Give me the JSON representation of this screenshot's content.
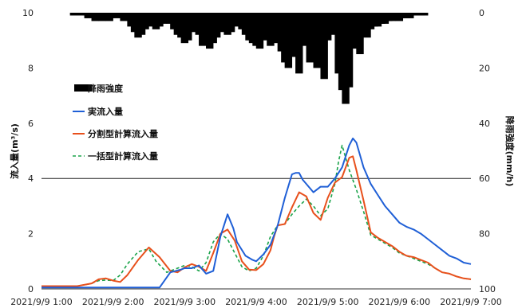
{
  "chart_data": {
    "type": "line",
    "legend": [
      {
        "label": "降雨強度",
        "kind": "bar",
        "color": "#000000"
      },
      {
        "label": "実流入量",
        "kind": "line",
        "color": "#1f5fd6"
      },
      {
        "label": "分割型計算流入量",
        "kind": "line",
        "color": "#e8501c"
      },
      {
        "label": "一括型計算流入量",
        "kind": "dashed",
        "color": "#1aa34a"
      }
    ],
    "legend_placement": "left-middle",
    "ylabel_left": "流入量(m³/s)",
    "ylabel_right": "降雨強度(mm/h)",
    "ylim_left": [
      0,
      10
    ],
    "yticks_left": [
      "0",
      "2",
      "4",
      "6",
      "8",
      "10"
    ],
    "ylim_right_inverted": [
      0,
      100
    ],
    "yticks_right": [
      "0",
      "20",
      "40",
      "60",
      "80",
      "100"
    ],
    "xlim_hours": [
      1,
      7
    ],
    "xticks": [
      "2021/9/9 1:00",
      "2021/9/9 2:00",
      "2021/9/9 3:00",
      "2021/9/9 4:00",
      "2021/9/9 5:00",
      "2021/9/9 6:00",
      "2021/9/9 7:00"
    ],
    "gridlines_left": [
      4
    ],
    "series": [
      {
        "key": "actual",
        "color": "#1f5fd6",
        "x": [
          1.0,
          1.5,
          2.0,
          2.3,
          2.5,
          2.65,
          2.8,
          2.95,
          3.0,
          3.1,
          3.2,
          3.3,
          3.4,
          3.5,
          3.6,
          3.68,
          3.73,
          3.85,
          3.95,
          4.0,
          4.1,
          4.2,
          4.3,
          4.4,
          4.5,
          4.55,
          4.6,
          4.65,
          4.7,
          4.8,
          4.9,
          5.0,
          5.1,
          5.2,
          5.3,
          5.35,
          5.4,
          5.5,
          5.6,
          5.7,
          5.8,
          5.9,
          6.0,
          6.1,
          6.2,
          6.3,
          6.4,
          6.5,
          6.6,
          6.7,
          6.8,
          6.9,
          7.0
        ],
        "y": [
          0.05,
          0.05,
          0.05,
          0.05,
          0.05,
          0.05,
          0.6,
          0.7,
          0.75,
          0.75,
          0.85,
          0.55,
          0.65,
          1.9,
          2.7,
          2.2,
          1.7,
          1.2,
          1.05,
          1.0,
          1.25,
          1.6,
          2.3,
          3.3,
          4.15,
          4.2,
          4.2,
          3.95,
          3.8,
          3.5,
          3.7,
          3.7,
          4.0,
          4.4,
          5.2,
          5.45,
          5.3,
          4.4,
          3.8,
          3.4,
          3.0,
          2.7,
          2.4,
          2.25,
          2.15,
          2.0,
          1.8,
          1.6,
          1.4,
          1.2,
          1.1,
          0.95,
          0.9
        ]
      },
      {
        "key": "split",
        "color": "#e8501c",
        "x": [
          1.0,
          1.5,
          1.7,
          1.8,
          1.9,
          2.0,
          2.1,
          2.2,
          2.35,
          2.5,
          2.65,
          2.8,
          2.9,
          3.0,
          3.1,
          3.2,
          3.3,
          3.4,
          3.5,
          3.6,
          3.7,
          3.8,
          3.9,
          4.0,
          4.1,
          4.2,
          4.25,
          4.3,
          4.4,
          4.5,
          4.6,
          4.7,
          4.8,
          4.9,
          5.0,
          5.1,
          5.2,
          5.3,
          5.35,
          5.4,
          5.5,
          5.6,
          5.7,
          5.8,
          5.9,
          6.0,
          6.1,
          6.2,
          6.3,
          6.4,
          6.5,
          6.6,
          6.7,
          6.8,
          6.9,
          7.0
        ],
        "y": [
          0.1,
          0.1,
          0.2,
          0.35,
          0.38,
          0.3,
          0.25,
          0.5,
          1.05,
          1.5,
          1.15,
          0.65,
          0.6,
          0.78,
          0.9,
          0.8,
          0.65,
          1.3,
          2.0,
          2.15,
          1.75,
          1.0,
          0.7,
          0.68,
          0.9,
          1.4,
          1.9,
          2.3,
          2.35,
          2.95,
          3.5,
          3.35,
          2.75,
          2.5,
          3.3,
          3.85,
          4.05,
          4.75,
          4.8,
          4.3,
          3.2,
          2.05,
          1.85,
          1.7,
          1.55,
          1.35,
          1.2,
          1.15,
          1.05,
          0.95,
          0.75,
          0.6,
          0.55,
          0.45,
          0.38,
          0.35
        ]
      },
      {
        "key": "bulk",
        "color": "#1aa34a",
        "x": [
          1.0,
          1.5,
          1.7,
          1.8,
          1.9,
          2.0,
          2.1,
          2.2,
          2.35,
          2.5,
          2.6,
          2.75,
          2.9,
          3.0,
          3.1,
          3.2,
          3.3,
          3.4,
          3.5,
          3.6,
          3.7,
          3.8,
          3.9,
          4.0,
          4.1,
          4.2,
          4.3,
          4.4,
          4.5,
          4.6,
          4.7,
          4.8,
          4.9,
          5.0,
          5.1,
          5.15,
          5.2,
          5.3,
          5.4,
          5.5,
          5.6,
          5.7,
          5.8,
          5.9,
          6.0,
          6.1,
          6.2,
          6.3,
          6.4,
          6.5,
          6.6,
          6.7,
          6.8,
          6.9,
          7.0
        ],
        "y": [
          0.1,
          0.1,
          0.2,
          0.3,
          0.32,
          0.3,
          0.5,
          0.9,
          1.35,
          1.45,
          1.0,
          0.6,
          0.75,
          0.85,
          0.8,
          0.65,
          0.95,
          1.7,
          2.0,
          1.8,
          1.3,
          0.8,
          0.65,
          0.75,
          1.2,
          1.9,
          2.3,
          2.35,
          2.7,
          3.0,
          3.25,
          3.0,
          2.65,
          2.9,
          3.8,
          4.6,
          5.2,
          4.3,
          3.6,
          2.8,
          1.95,
          1.8,
          1.65,
          1.5,
          1.3,
          1.2,
          1.1,
          1.0,
          0.9,
          0.75,
          0.6,
          0.55,
          0.45,
          0.38,
          0.35
        ]
      }
    ],
    "rain": {
      "key": "rainfall",
      "color": "#000000",
      "x": [
        1.45,
        1.55,
        1.65,
        1.75,
        1.85,
        1.95,
        2.05,
        2.15,
        2.25,
        2.3,
        2.35,
        2.4,
        2.45,
        2.5,
        2.55,
        2.6,
        2.65,
        2.7,
        2.75,
        2.8,
        2.85,
        2.9,
        2.95,
        3.0,
        3.05,
        3.1,
        3.15,
        3.2,
        3.25,
        3.3,
        3.35,
        3.4,
        3.45,
        3.5,
        3.55,
        3.6,
        3.65,
        3.7,
        3.75,
        3.8,
        3.85,
        3.9,
        3.95,
        4.0,
        4.05,
        4.1,
        4.15,
        4.2,
        4.25,
        4.3,
        4.35,
        4.4,
        4.45,
        4.5,
        4.55,
        4.6,
        4.65,
        4.7,
        4.75,
        4.8,
        4.85,
        4.9,
        4.95,
        5.0,
        5.05,
        5.1,
        5.15,
        5.2,
        5.25,
        5.3,
        5.35,
        5.4,
        5.45,
        5.5,
        5.55,
        5.6,
        5.65,
        5.7,
        5.75,
        5.8,
        5.85,
        5.9,
        5.95,
        6.0,
        6.05,
        6.1,
        6.15,
        6.2,
        6.25,
        6.3,
        6.35
      ],
      "y": [
        1,
        1,
        2,
        3,
        3,
        3,
        2,
        3,
        5,
        7,
        9,
        8,
        6,
        5,
        4,
        6,
        5,
        4,
        3,
        4,
        6,
        8,
        9,
        11,
        10,
        7,
        5,
        8,
        12,
        10,
        13,
        11,
        9,
        7,
        6,
        8,
        7,
        5,
        4,
        6,
        8,
        10,
        11,
        12,
        13,
        10,
        9,
        12,
        8,
        11,
        14,
        18,
        20,
        16,
        13,
        22,
        12,
        10,
        18,
        14,
        20,
        17,
        24,
        10,
        7,
        8,
        22,
        28,
        33,
        27,
        13,
        11,
        15,
        8,
        9,
        6,
        5,
        5,
        4,
        4,
        3,
        3,
        2,
        3,
        2,
        2,
        2,
        1,
        1,
        1,
        1
      ]
    }
  }
}
